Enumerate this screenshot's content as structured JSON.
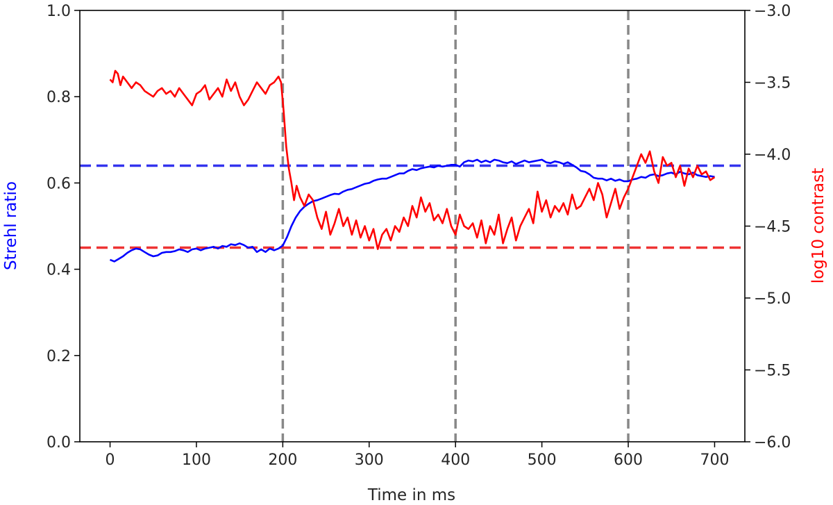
{
  "chart_data": {
    "type": "line",
    "title": "",
    "xlabel": "Time in ms",
    "ylabel_left": "Strehl ratio",
    "ylabel_right": "log10 contrast",
    "xlim": [
      -35,
      735
    ],
    "ylim_left": [
      0.0,
      1.0
    ],
    "ylim_right": [
      -6.0,
      -3.0
    ],
    "xticks": [
      "0",
      "100",
      "200",
      "300",
      "400",
      "500",
      "600",
      "700"
    ],
    "yticks_left": [
      "0.0",
      "0.2",
      "0.4",
      "0.6",
      "0.8",
      "1.0"
    ],
    "yticks_right": [
      "−6.0",
      "−5.5",
      "−5.0",
      "−4.5",
      "−4.0",
      "−3.5",
      "−3.0"
    ],
    "grid": false,
    "colors": {
      "strehl": "#0000ff",
      "contrast": "#ff0000",
      "strehl_reference": "#3333ee",
      "contrast_reference": "#ee3333",
      "markers": "#888888"
    },
    "vertical_markers_x": [
      200,
      400,
      600
    ],
    "reference_lines": [
      {
        "axis": "left",
        "y": 0.64
      },
      {
        "axis": "right",
        "y": -4.65
      }
    ],
    "series": [
      {
        "axis": "left",
        "x": [
          0,
          5,
          10,
          15,
          20,
          25,
          30,
          35,
          40,
          45,
          50,
          55,
          60,
          65,
          70,
          75,
          80,
          85,
          90,
          95,
          100,
          105,
          110,
          115,
          120,
          125,
          130,
          135,
          140,
          145,
          150,
          155,
          160,
          165,
          170,
          175,
          180,
          185,
          190,
          195,
          200,
          205,
          210,
          215,
          220,
          225,
          230,
          235,
          240,
          245,
          250,
          255,
          260,
          265,
          270,
          275,
          280,
          285,
          290,
          295,
          300,
          305,
          310,
          315,
          320,
          325,
          330,
          335,
          340,
          345,
          350,
          355,
          360,
          365,
          370,
          375,
          380,
          385,
          390,
          395,
          400,
          405,
          410,
          415,
          420,
          425,
          430,
          435,
          440,
          445,
          450,
          455,
          460,
          465,
          470,
          475,
          480,
          485,
          490,
          495,
          500,
          505,
          510,
          515,
          520,
          525,
          530,
          535,
          540,
          545,
          550,
          555,
          560,
          565,
          570,
          575,
          580,
          585,
          590,
          595,
          600,
          605,
          610,
          615,
          620,
          625,
          630,
          635,
          640,
          645,
          650,
          655,
          660,
          665,
          670,
          675,
          680,
          685,
          690,
          695,
          700
        ],
        "y": [
          0.422,
          0.418,
          0.424,
          0.43,
          0.438,
          0.444,
          0.448,
          0.446,
          0.44,
          0.434,
          0.43,
          0.432,
          0.438,
          0.44,
          0.44,
          0.442,
          0.446,
          0.444,
          0.44,
          0.446,
          0.448,
          0.444,
          0.448,
          0.45,
          0.452,
          0.448,
          0.454,
          0.452,
          0.458,
          0.456,
          0.46,
          0.456,
          0.45,
          0.452,
          0.44,
          0.446,
          0.44,
          0.448,
          0.444,
          0.448,
          0.455,
          0.475,
          0.5,
          0.52,
          0.535,
          0.545,
          0.552,
          0.558,
          0.56,
          0.564,
          0.568,
          0.572,
          0.575,
          0.574,
          0.58,
          0.584,
          0.586,
          0.59,
          0.594,
          0.598,
          0.6,
          0.605,
          0.608,
          0.61,
          0.61,
          0.614,
          0.618,
          0.622,
          0.622,
          0.628,
          0.632,
          0.63,
          0.634,
          0.636,
          0.638,
          0.636,
          0.64,
          0.638,
          0.64,
          0.642,
          0.642,
          0.638,
          0.648,
          0.652,
          0.65,
          0.654,
          0.648,
          0.652,
          0.648,
          0.654,
          0.652,
          0.648,
          0.646,
          0.65,
          0.644,
          0.648,
          0.652,
          0.648,
          0.65,
          0.652,
          0.654,
          0.648,
          0.646,
          0.65,
          0.648,
          0.644,
          0.648,
          0.642,
          0.636,
          0.628,
          0.626,
          0.62,
          0.612,
          0.61,
          0.61,
          0.606,
          0.61,
          0.605,
          0.608,
          0.604,
          0.604,
          0.608,
          0.61,
          0.614,
          0.612,
          0.618,
          0.62,
          0.616,
          0.618,
          0.622,
          0.624,
          0.62,
          0.626,
          0.622,
          0.62,
          0.624,
          0.618,
          0.616,
          0.614,
          0.616,
          0.614
        ]
      },
      {
        "axis": "right",
        "x": [
          0,
          3,
          6,
          9,
          12,
          15,
          20,
          25,
          30,
          35,
          40,
          45,
          50,
          55,
          60,
          65,
          70,
          75,
          80,
          85,
          90,
          95,
          100,
          105,
          110,
          115,
          120,
          125,
          130,
          135,
          140,
          145,
          150,
          155,
          160,
          165,
          170,
          175,
          180,
          185,
          190,
          195,
          198,
          201,
          204,
          207,
          210,
          213,
          216,
          220,
          225,
          230,
          235,
          240,
          245,
          250,
          255,
          260,
          265,
          270,
          275,
          280,
          285,
          290,
          295,
          300,
          305,
          310,
          315,
          320,
          325,
          330,
          335,
          340,
          345,
          350,
          355,
          360,
          365,
          370,
          375,
          380,
          385,
          390,
          395,
          400,
          405,
          410,
          415,
          420,
          425,
          430,
          435,
          440,
          445,
          450,
          455,
          460,
          465,
          470,
          475,
          480,
          485,
          490,
          495,
          500,
          505,
          510,
          515,
          520,
          525,
          530,
          535,
          540,
          545,
          550,
          555,
          560,
          565,
          570,
          575,
          580,
          585,
          590,
          595,
          600,
          605,
          610,
          615,
          620,
          625,
          630,
          635,
          640,
          645,
          650,
          655,
          660,
          665,
          670,
          675,
          680,
          685,
          690,
          695,
          700
        ],
        "y": [
          -3.48,
          -3.5,
          -3.42,
          -3.44,
          -3.52,
          -3.46,
          -3.5,
          -3.54,
          -3.5,
          -3.52,
          -3.56,
          -3.58,
          -3.6,
          -3.56,
          -3.54,
          -3.58,
          -3.56,
          -3.6,
          -3.54,
          -3.58,
          -3.62,
          -3.66,
          -3.58,
          -3.56,
          -3.52,
          -3.62,
          -3.58,
          -3.54,
          -3.6,
          -3.48,
          -3.56,
          -3.5,
          -3.6,
          -3.66,
          -3.62,
          -3.56,
          -3.5,
          -3.54,
          -3.58,
          -3.52,
          -3.5,
          -3.46,
          -3.5,
          -3.7,
          -3.95,
          -4.1,
          -4.2,
          -4.32,
          -4.22,
          -4.3,
          -4.36,
          -4.28,
          -4.32,
          -4.44,
          -4.52,
          -4.4,
          -4.56,
          -4.48,
          -4.38,
          -4.5,
          -4.44,
          -4.56,
          -4.46,
          -4.58,
          -4.5,
          -4.6,
          -4.52,
          -4.66,
          -4.56,
          -4.52,
          -4.6,
          -4.5,
          -4.54,
          -4.44,
          -4.5,
          -4.36,
          -4.44,
          -4.3,
          -4.4,
          -4.34,
          -4.46,
          -4.42,
          -4.48,
          -4.38,
          -4.5,
          -4.56,
          -4.42,
          -4.5,
          -4.52,
          -4.48,
          -4.58,
          -4.46,
          -4.62,
          -4.5,
          -4.56,
          -4.42,
          -4.62,
          -4.52,
          -4.44,
          -4.6,
          -4.5,
          -4.44,
          -4.38,
          -4.48,
          -4.26,
          -4.4,
          -4.32,
          -4.44,
          -4.36,
          -4.4,
          -4.34,
          -4.42,
          -4.28,
          -4.38,
          -4.36,
          -4.3,
          -4.24,
          -4.32,
          -4.2,
          -4.28,
          -4.44,
          -4.34,
          -4.24,
          -4.38,
          -4.3,
          -4.24,
          -4.16,
          -4.08,
          -4.0,
          -4.06,
          -3.98,
          -4.12,
          -4.2,
          -4.02,
          -4.08,
          -4.06,
          -4.16,
          -4.08,
          -4.22,
          -4.1,
          -4.16,
          -4.08,
          -4.14,
          -4.12,
          -4.18,
          -4.16
        ]
      }
    ]
  }
}
